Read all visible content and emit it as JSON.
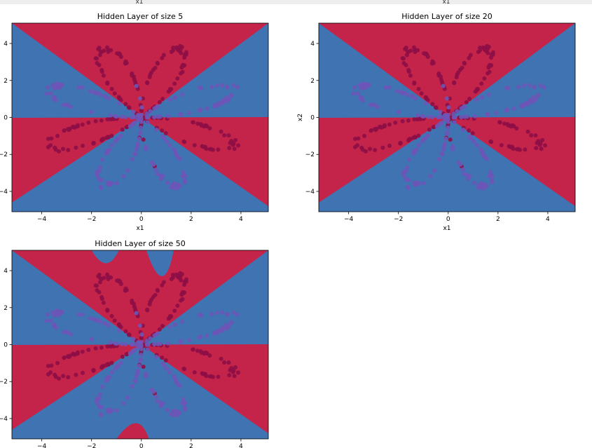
{
  "colors": {
    "red_region": "#c4244a",
    "blue_region": "#3f73b2",
    "red_points": "#8e0e46",
    "blue_points": "#6d55b7"
  },
  "header_fragment": {
    "left": "x1",
    "right": "x1"
  },
  "chart_data": [
    {
      "type": "scatter",
      "title": "Hidden Layer of size 5",
      "xlabel": "x1",
      "ylabel": "",
      "xlim": [
        -5.2,
        5.1
      ],
      "ylim": [
        -5.1,
        5.1
      ],
      "xticks": [
        "−4",
        "−2",
        "0",
        "2",
        "4"
      ],
      "yticks": [
        "4",
        "2",
        "0",
        "−2",
        "−4"
      ],
      "background": "decision regions: 4 red and 4 blue wedges meeting at the origin",
      "classes": [
        "red",
        "blue"
      ]
    },
    {
      "type": "scatter",
      "title": "Hidden Layer of size 20",
      "xlabel": "x1",
      "ylabel": "x2",
      "xlim": [
        -5.2,
        5.1
      ],
      "ylim": [
        -5.1,
        5.1
      ],
      "xticks": [
        "−4",
        "−2",
        "0",
        "2",
        "4"
      ],
      "yticks": [
        "4",
        "2",
        "0",
        "−2",
        "−4"
      ],
      "background": "decision regions: 4 red and 4 blue wedges meeting at the origin",
      "classes": [
        "red",
        "blue"
      ]
    },
    {
      "type": "scatter",
      "title": "Hidden Layer of size 50",
      "xlabel": "",
      "ylabel": "",
      "xlim": [
        -5.2,
        5.1
      ],
      "ylim": [
        -5.1,
        5.1
      ],
      "xticks": [
        "−4",
        "−2",
        "0",
        "2",
        "4"
      ],
      "yticks": [
        "4",
        "2",
        "0",
        "−2",
        "−4"
      ],
      "background": "decision regions: 4 red and 4 blue wedges plus small extra blue/red islands",
      "classes": [
        "red",
        "blue"
      ]
    }
  ]
}
